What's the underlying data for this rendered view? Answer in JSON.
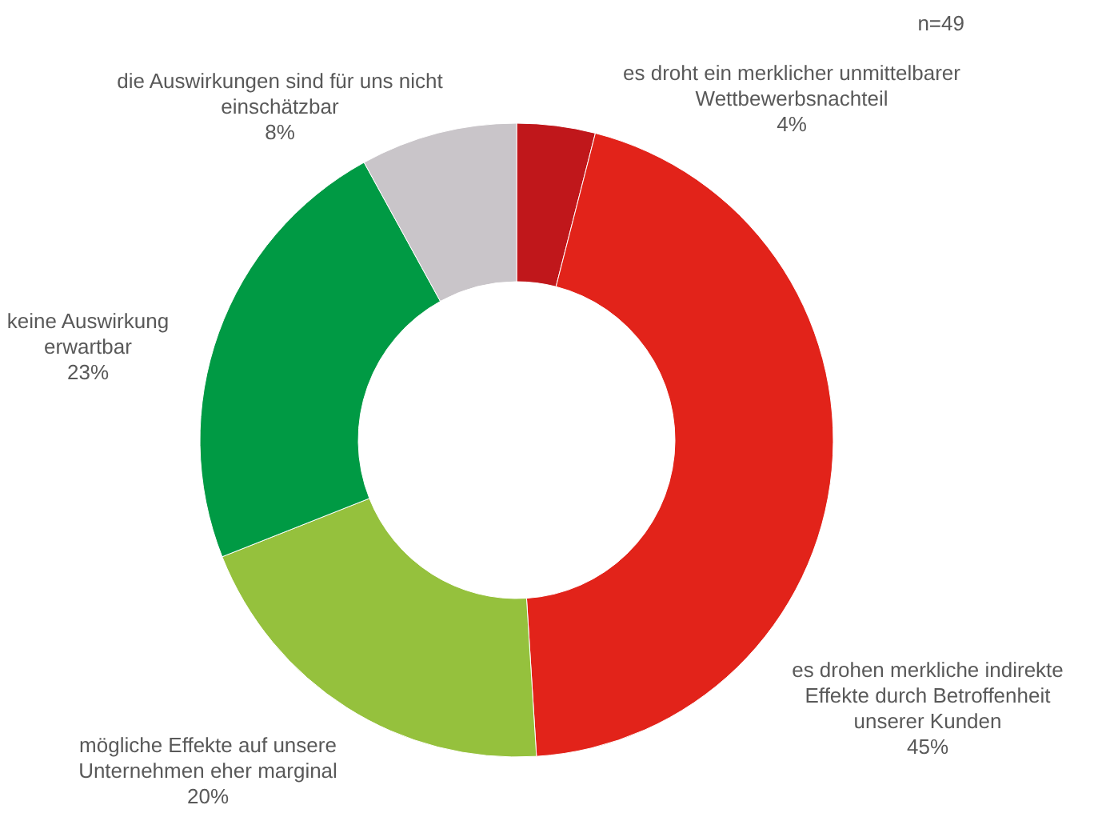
{
  "chart_data": {
    "type": "donut",
    "categories": [
      "es droht ein merklicher unmittelbarer Wettbewerbsnachteil",
      "es drohen merkliche indirekte Effekte durch Betroffenheit unserer Kunden",
      "mögliche Effekte auf unsere Unternehmen eher marginal",
      "keine Auswirkung erwartbar",
      "die Auswirkungen sind für uns nicht einschätzbar"
    ],
    "values": [
      4,
      45,
      20,
      23,
      8
    ],
    "colors": [
      "#c0171b",
      "#e2231a",
      "#95c13d",
      "#009a44",
      "#c9c5c9"
    ],
    "value_labels": [
      "4%",
      "45%",
      "20%",
      "23%",
      "8%"
    ],
    "annotations": [
      "n=49"
    ]
  }
}
